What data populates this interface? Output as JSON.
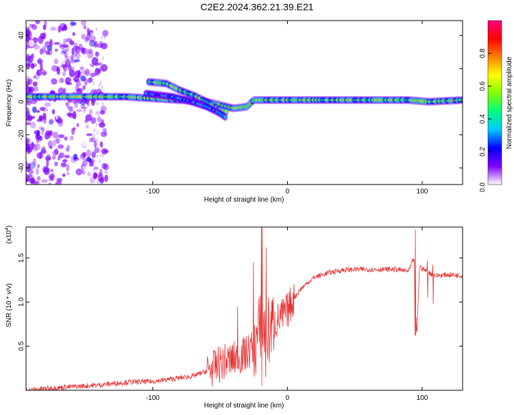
{
  "title": "C2E2.2024.362.21.39.E21",
  "chart_data": [
    {
      "type": "heatmap",
      "xlabel": "Height of straight line (km)",
      "ylabel": "Frequency (Hz)",
      "xlim": [
        -194,
        130
      ],
      "ylim": [
        -50,
        49
      ],
      "xticks": [
        -100,
        0,
        100
      ],
      "yticks": [
        40,
        20,
        0,
        -20,
        -40
      ],
      "colorbar": {
        "label": "Normalized spectral amplitude",
        "range": [
          0,
          1
        ],
        "ticks": [
          "0.2",
          "0.4",
          "0.6",
          "0.8"
        ],
        "zero_label": "0.0",
        "colors": [
          "#ffffff",
          "#8000ff",
          "#0000ff",
          "#00c8ff",
          "#00ff80",
          "#80ff00",
          "#ffff00",
          "#ff8000",
          "#ff0000",
          "#ff0080"
        ]
      },
      "tracks": [
        {
          "points": [
            [
              -194,
              3
            ],
            [
              -170,
              3
            ],
            [
              -140,
              3
            ],
            [
              -120,
              3
            ],
            [
              -100,
              2
            ],
            [
              -80,
              1
            ],
            [
              -60,
              0
            ],
            [
              -50,
              -2
            ],
            [
              -45,
              -3
            ],
            [
              -40,
              -4
            ],
            [
              -30,
              -3
            ],
            [
              -25,
              1
            ],
            [
              0,
              1
            ],
            [
              50,
              1
            ],
            [
              90,
              1
            ],
            [
              105,
              0
            ],
            [
              130,
              1
            ]
          ],
          "amplitude": 0.72
        },
        {
          "points": [
            [
              -103,
              12
            ],
            [
              -90,
              11
            ],
            [
              -80,
              7
            ],
            [
              -70,
              4
            ],
            [
              -60,
              0
            ],
            [
              -50,
              -5
            ],
            [
              -45,
              -6
            ]
          ],
          "amplitude": 0.65
        },
        {
          "points": [
            [
              -105,
              5
            ],
            [
              -95,
              4
            ],
            [
              -85,
              3
            ],
            [
              -75,
              1
            ],
            [
              -60,
              -3
            ],
            [
              -50,
              -7
            ],
            [
              -45,
              -10
            ]
          ],
          "amplitude": 0.4
        }
      ]
    },
    {
      "type": "line",
      "xlabel": "Height of straight line (km)",
      "ylabel": "SNR (10 * v/v)",
      "y_scale_note": "(x10",
      "y_scale_exp": "4",
      "xlim": [
        -194,
        130
      ],
      "ylim": [
        0,
        1.85
      ],
      "xticks": [
        -100,
        0,
        100
      ],
      "yticks": [
        "0.5",
        "1.0",
        "1.5"
      ],
      "ytick_values": [
        0.5,
        1.0,
        1.5
      ],
      "series": [
        {
          "color": "#e83030",
          "x": [
            -194,
            -180,
            -160,
            -140,
            -120,
            -100,
            -90,
            -80,
            -70,
            -60,
            -55,
            -50,
            -45,
            -40,
            -35,
            -30,
            -25,
            -22,
            -20,
            -18,
            -15,
            -12,
            -10,
            -5,
            0,
            5,
            10,
            15,
            20,
            30,
            40,
            50,
            60,
            70,
            80,
            90,
            94,
            96,
            98,
            100,
            105,
            110,
            120,
            130
          ],
          "y": [
            0.0,
            0.02,
            0.04,
            0.06,
            0.09,
            0.1,
            0.12,
            0.14,
            0.16,
            0.22,
            0.25,
            0.3,
            0.33,
            0.35,
            0.38,
            0.42,
            0.5,
            0.6,
            0.75,
            0.7,
            0.65,
            0.7,
            0.76,
            0.82,
            0.9,
            1.05,
            1.15,
            1.22,
            1.28,
            1.33,
            1.36,
            1.37,
            1.37,
            1.37,
            1.37,
            1.35,
            1.5,
            0.6,
            1.4,
            1.38,
            1.33,
            1.3,
            1.31,
            1.3
          ],
          "spikes": [
            [
              -19,
              1.85,
              0.05
            ],
            [
              -16,
              1.62,
              0.15
            ],
            [
              -25,
              1.45,
              0.3
            ],
            [
              -37,
              0.95,
              0.25
            ],
            [
              95,
              1.82,
              0.62
            ],
            [
              104,
              1.47,
              1.05
            ],
            [
              108,
              1.42,
              0.98
            ]
          ],
          "noise": 0.03
        }
      ]
    }
  ]
}
